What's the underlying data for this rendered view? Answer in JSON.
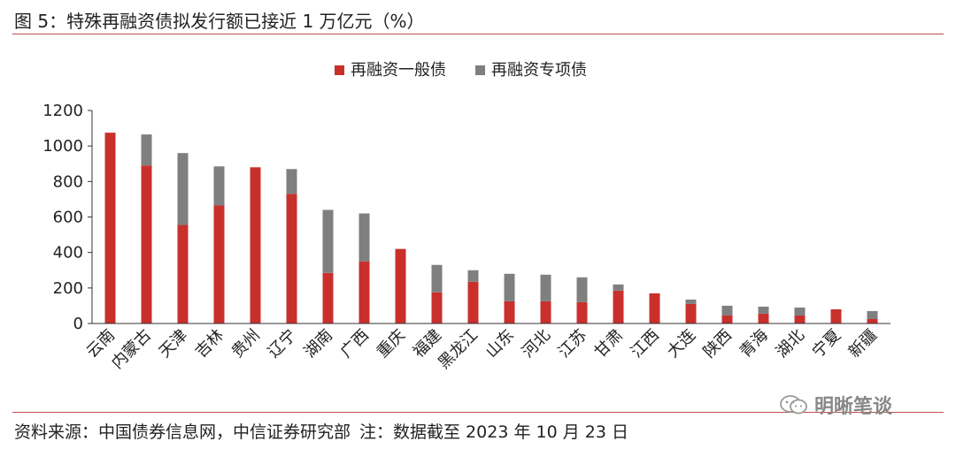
{
  "figure": {
    "title": "图 5：特殊再融资债拟发行额已接近 1 万亿元（%）",
    "source": "资料来源：中国债券信息网，中信证券研究部",
    "note": "注：数据截至 2023 年 10 月 23 日",
    "watermark": "明晰笔谈",
    "watermark_icon": "wechat-icon"
  },
  "colors": {
    "general": "#c9302c",
    "special": "#7f7f7f",
    "rule": "#c0504d"
  },
  "chart_data": {
    "type": "bar",
    "stacked": true,
    "title": "特殊再融资债拟发行额已接近 1 万亿元（%）",
    "xlabel": "",
    "ylabel": "",
    "ylim": [
      0,
      1200
    ],
    "yticks": [
      0,
      200,
      400,
      600,
      800,
      1000,
      1200
    ],
    "grid": false,
    "legend_position": "top-center",
    "categories": [
      "云南",
      "内蒙古",
      "天津",
      "吉林",
      "贵州",
      "辽宁",
      "湖南",
      "广西",
      "重庆",
      "福建",
      "黑龙江",
      "山东",
      "河北",
      "江苏",
      "甘肃",
      "江西",
      "大连",
      "陕西",
      "青海",
      "湖北",
      "宁夏",
      "新疆"
    ],
    "series": [
      {
        "name": "再融资一般债",
        "color": "#c9302c",
        "values": [
          1075,
          890,
          555,
          665,
          880,
          730,
          285,
          350,
          420,
          175,
          235,
          125,
          125,
          120,
          185,
          170,
          110,
          45,
          55,
          45,
          80,
          25
        ]
      },
      {
        "name": "再融资专项债",
        "color": "#7f7f7f",
        "values": [
          0,
          175,
          405,
          220,
          0,
          140,
          355,
          270,
          0,
          155,
          65,
          155,
          150,
          140,
          35,
          0,
          25,
          55,
          40,
          45,
          0,
          45
        ]
      }
    ]
  }
}
